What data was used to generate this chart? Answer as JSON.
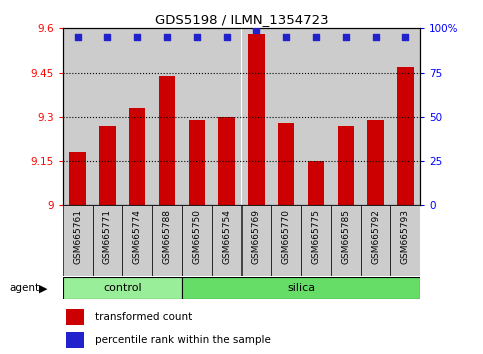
{
  "title": "GDS5198 / ILMN_1354723",
  "samples": [
    "GSM665761",
    "GSM665771",
    "GSM665774",
    "GSM665788",
    "GSM665750",
    "GSM665754",
    "GSM665769",
    "GSM665770",
    "GSM665775",
    "GSM665785",
    "GSM665792",
    "GSM665793"
  ],
  "groups": [
    "control",
    "control",
    "control",
    "control",
    "silica",
    "silica",
    "silica",
    "silica",
    "silica",
    "silica",
    "silica",
    "silica"
  ],
  "transformed_counts": [
    9.18,
    9.27,
    9.33,
    9.44,
    9.29,
    9.3,
    9.58,
    9.28,
    9.15,
    9.27,
    9.29,
    9.47
  ],
  "percentile_ranks": [
    95,
    95,
    95,
    95,
    95,
    95,
    99,
    95,
    95,
    95,
    95,
    95
  ],
  "ylim_left": [
    9.0,
    9.6
  ],
  "ylim_right": [
    0,
    100
  ],
  "yticks_left": [
    9.0,
    9.15,
    9.3,
    9.45,
    9.6
  ],
  "yticks_right": [
    0,
    25,
    50,
    75,
    100
  ],
  "ytick_labels_left": [
    "9",
    "9.15",
    "9.3",
    "9.45",
    "9.6"
  ],
  "ytick_labels_right": [
    "0",
    "25",
    "50",
    "75",
    "100%"
  ],
  "bar_color": "#cc0000",
  "dot_color": "#2222cc",
  "col_bg_color": "#cccccc",
  "plot_bg_color": "#ffffff",
  "control_color": "#99ee99",
  "silica_color": "#66dd66",
  "agent_label": "agent",
  "control_label": "control",
  "silica_label": "silica",
  "legend_transformed": "transformed count",
  "legend_percentile": "percentile rank within the sample",
  "n_control": 4,
  "n_silica": 8,
  "bar_width": 0.55,
  "dot_size": 25
}
